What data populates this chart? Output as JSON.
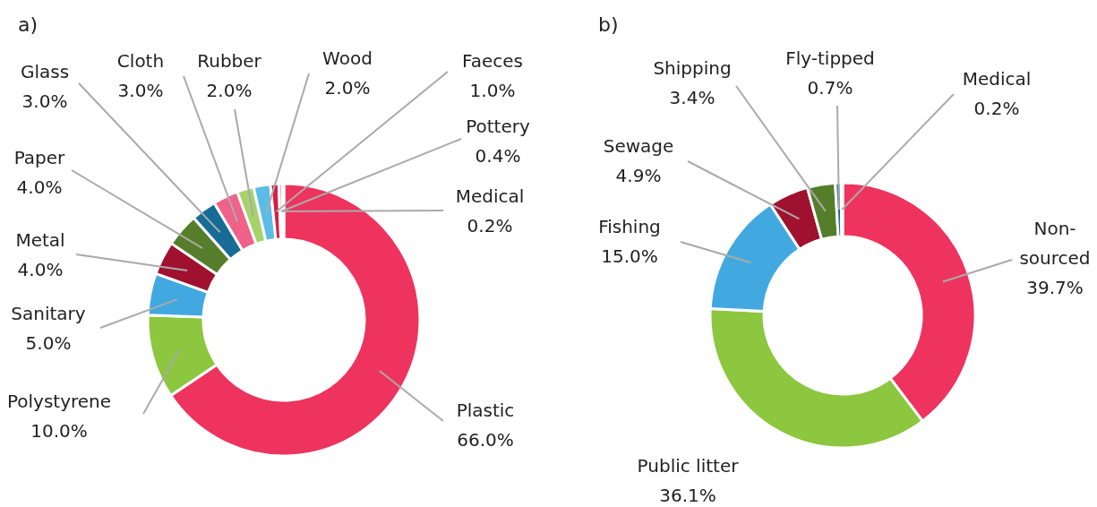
{
  "chart_data": [
    {
      "type": "donut",
      "title": "a)",
      "categories": [
        "Plastic",
        "Polystyrene",
        "Sanitary",
        "Metal",
        "Paper",
        "Glass",
        "Cloth",
        "Rubber",
        "Wood",
        "Faeces",
        "Pottery",
        "Medical"
      ],
      "values": [
        66,
        10,
        5,
        4,
        4,
        3,
        3,
        2,
        2,
        1,
        0.4,
        0.2
      ],
      "value_labels": [
        "66.0%",
        "10.0%",
        "5.0%",
        "4.0%",
        "4.0%",
        "3.0%",
        "3.0%",
        "2.0%",
        "2.0%",
        "1.0%",
        "0.4%",
        "0.2%"
      ],
      "colors": [
        "#ee335e",
        "#8dc63f",
        "#41a9e0",
        "#a0102f",
        "#567d2a",
        "#166c96",
        "#f0628a",
        "#a6d26a",
        "#5bbce8",
        "#d81e45",
        "#ee335e",
        "#ee335e"
      ]
    },
    {
      "type": "donut",
      "title": "b)",
      "categories": [
        "Non-sourced",
        "Public litter",
        "Fishing",
        "Sewage",
        "Shipping",
        "Fly-tipped",
        "Medical"
      ],
      "values": [
        39.7,
        36.1,
        15.0,
        4.9,
        3.4,
        0.7,
        0.2
      ],
      "value_labels": [
        "39.7%",
        "36.1%",
        "15.0%",
        "4.9%",
        "3.4%",
        "0.7%",
        "0.2%"
      ],
      "colors": [
        "#ee335e",
        "#8dc63f",
        "#41a9e0",
        "#a0102f",
        "#567d2a",
        "#166c96",
        "#ee335e"
      ]
    }
  ]
}
